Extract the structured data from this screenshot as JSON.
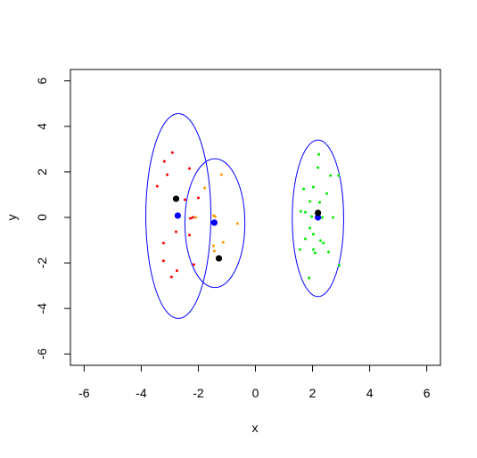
{
  "chart_data": {
    "type": "scatter",
    "x_label": "x",
    "y_label": "y",
    "xlim": [
      -6.48,
      6.48
    ],
    "ylim": [
      -6.5,
      6.5
    ],
    "xticks": [
      -6,
      -4,
      -2,
      0,
      2,
      4,
      6
    ],
    "yticks": [
      -6,
      -4,
      -2,
      0,
      2,
      4,
      6
    ],
    "series": [
      {
        "color": "#ff0000",
        "pch": 20,
        "x": [
          -2.91,
          -3.19,
          -3.09,
          -2.31,
          -3.44,
          -2.47,
          -2.0,
          -2.19,
          -2.28,
          -2.78,
          -3.22,
          -2.31,
          -3.22,
          -2.75,
          -2.94,
          -2.16
        ],
        "values": [
          2.85,
          2.46,
          1.88,
          2.15,
          1.37,
          0.78,
          0.86,
          0,
          -0.04,
          -0.63,
          -1.13,
          -0.78,
          -1.91,
          -2.34,
          -2.62,
          -2.07
        ]
      },
      {
        "color": "#ff9900",
        "pch": 20,
        "x": [
          -1.78,
          -1.19,
          -1.47,
          -1.41,
          -2.09,
          -0.63,
          -1.13,
          -1.47,
          -1.44
        ],
        "values": [
          1.29,
          1.88,
          0.08,
          0.04,
          0,
          -0.27,
          -1.09,
          -1.25,
          -1.48
        ]
      },
      {
        "color": "#00ee00",
        "pch": 20,
        "x": [
          2.22,
          2.19,
          2.63,
          2.91,
          1.69,
          2.03,
          2.5,
          1.91,
          2.25,
          1.75,
          1.97,
          2.16,
          2.34,
          2.72,
          1.59,
          1.91,
          2.03,
          2.28,
          1.75,
          2.38,
          2.03,
          1.56,
          2.56,
          2.09,
          2.94,
          1.88
        ],
        "values": [
          2.77,
          2.19,
          1.84,
          1.84,
          1.25,
          1.33,
          1.05,
          0.7,
          0.66,
          0.23,
          0.04,
          -0.04,
          0,
          0,
          0.27,
          -0.47,
          -0.74,
          -1.02,
          -0.94,
          -1.13,
          -1.41,
          -1.41,
          -1.52,
          -1.56,
          -2.11,
          -2.66
        ]
      },
      {
        "color": "#0000ff",
        "pch": 19,
        "x": [
          -2.72,
          -1.44,
          2.19
        ],
        "values": [
          0.08,
          -0.23,
          0.0
        ]
      },
      {
        "color": "#000000",
        "pch": 19,
        "x": [
          -2.78,
          -1.28,
          2.19
        ],
        "values": [
          0.82,
          -1.8,
          0.2
        ]
      }
    ],
    "ellipses": [
      {
        "color": "#0000ff",
        "cx": -2.7,
        "cy": 0.06,
        "rx": 1.14,
        "ry": 4.5
      },
      {
        "color": "#0000ff",
        "cx": -1.42,
        "cy": -0.25,
        "rx": 1.05,
        "ry": 2.83
      },
      {
        "color": "#0000ff",
        "cx": 2.19,
        "cy": -0.04,
        "rx": 0.9,
        "ry": 3.44
      }
    ]
  }
}
